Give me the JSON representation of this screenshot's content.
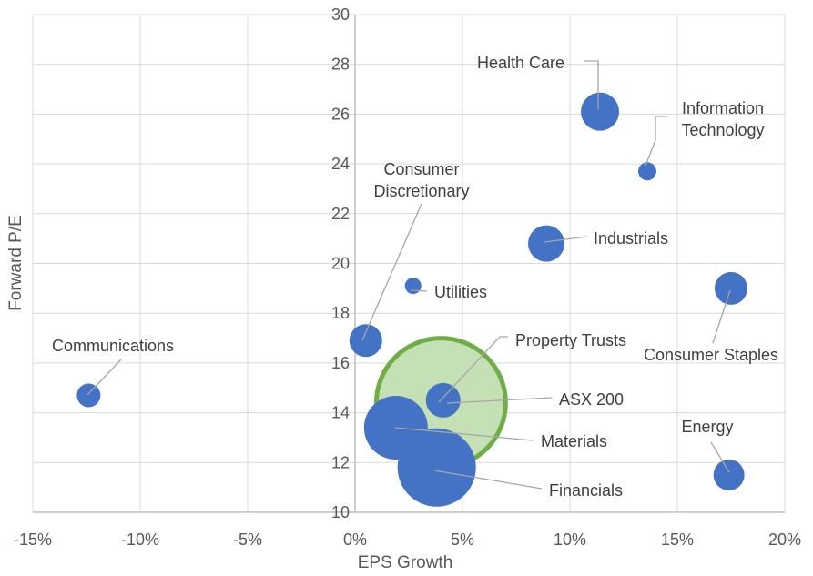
{
  "chart_data": {
    "type": "bubble",
    "xlabel": "EPS Growth",
    "ylabel": "Forward P/E",
    "xlim": [
      -15,
      20
    ],
    "ylim": [
      10,
      30
    ],
    "x_ticks": [
      "-15%",
      "-10%",
      "-5%",
      "0%",
      "5%",
      "10%",
      "15%",
      "20%"
    ],
    "y_ticks": [
      "10",
      "12",
      "14",
      "16",
      "18",
      "20",
      "22",
      "24",
      "26",
      "28",
      "30"
    ],
    "grid": true,
    "colors": {
      "sector": "#4472c4",
      "index_fill": "#c5e0b4",
      "index_stroke": "#70ad47"
    },
    "points": [
      {
        "name": "Communications",
        "x": -12.4,
        "y": 14.7,
        "size": 1.5
      },
      {
        "name": "Consumer Discretionary",
        "x": 0.5,
        "y": 16.9,
        "size": 3.5
      },
      {
        "name": "Utilities",
        "x": 2.7,
        "y": 19.1,
        "size": 0.7
      },
      {
        "name": "Industrials",
        "x": 8.9,
        "y": 20.8,
        "size": 4.5
      },
      {
        "name": "Health Care",
        "x": 11.4,
        "y": 26.1,
        "size": 7.5
      },
      {
        "name": "Information Technology",
        "x": 13.6,
        "y": 23.7,
        "size": 0.8
      },
      {
        "name": "Consumer Staples",
        "x": 17.5,
        "y": 19.0,
        "size": 4.0
      },
      {
        "name": "Energy",
        "x": 17.4,
        "y": 11.5,
        "size": 3.5
      },
      {
        "name": "Property Trusts",
        "x": 4.1,
        "y": 14.5,
        "size": 5.0
      },
      {
        "name": "Materials",
        "x": 1.9,
        "y": 13.4,
        "size": 16.0
      },
      {
        "name": "Financials",
        "x": 3.8,
        "y": 11.8,
        "size": 30.0
      }
    ],
    "index": {
      "name": "ASX 200",
      "x": 4.0,
      "y": 14.4,
      "size": 100
    }
  }
}
